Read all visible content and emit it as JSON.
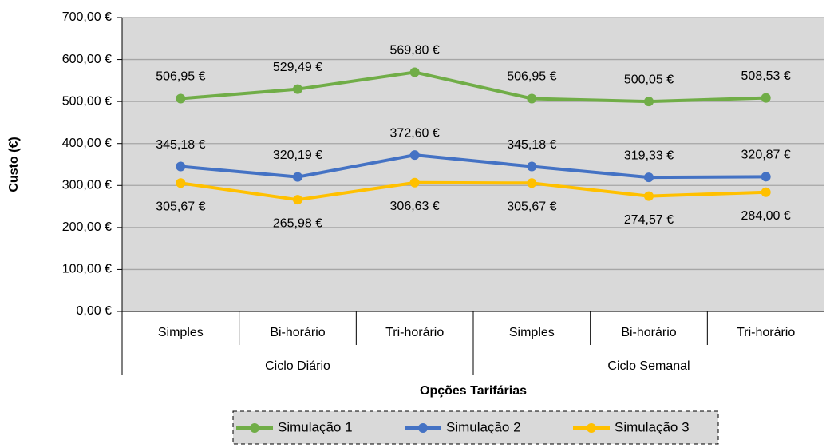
{
  "chart_data": {
    "type": "line",
    "x_label": "Opções Tarifárias",
    "y_label": "Custo (€)",
    "groups": [
      {
        "name": "Ciclo Diário",
        "categories": [
          "Simples",
          "Bi-horário",
          "Tri-horário"
        ]
      },
      {
        "name": "Ciclo Semanal",
        "categories": [
          "Simples",
          "Bi-horário",
          "Tri-horário"
        ]
      }
    ],
    "series": [
      {
        "name": "Simulação 1",
        "color": "#70ad47",
        "values": [
          506.95,
          529.49,
          569.8,
          506.95,
          500.05,
          508.53
        ],
        "value_labels": [
          "506,95 €",
          "529,49 €",
          "569,80 €",
          "506,95 €",
          "500,05 €",
          "508,53 €"
        ]
      },
      {
        "name": "Simulação 2",
        "color": "#4472c4",
        "values": [
          345.18,
          320.19,
          372.6,
          345.18,
          319.33,
          320.87
        ],
        "value_labels": [
          "345,18 €",
          "320,19 €",
          "372,60 €",
          "345,18 €",
          "319,33 €",
          "320,87 €"
        ]
      },
      {
        "name": "Simulação 3",
        "color": "#ffc000",
        "values": [
          305.67,
          265.98,
          306.63,
          305.67,
          274.57,
          284.0
        ],
        "value_labels": [
          "305,67 €",
          "265,98 €",
          "306,63 €",
          "305,67 €",
          "274,57 €",
          "284,00 €"
        ]
      }
    ],
    "ylim": [
      0,
      700
    ],
    "yticks": [
      {
        "value": 0,
        "label": "0,00 €"
      },
      {
        "value": 100,
        "label": "100,00 €"
      },
      {
        "value": 200,
        "label": "200,00 €"
      },
      {
        "value": 300,
        "label": "300,00 €"
      },
      {
        "value": 400,
        "label": "400,00 €"
      },
      {
        "value": 500,
        "label": "500,00 €"
      },
      {
        "value": 600,
        "label": "600,00 €"
      },
      {
        "value": 700,
        "label": "700,00 €"
      }
    ],
    "grid": true,
    "legend": "bottom"
  }
}
